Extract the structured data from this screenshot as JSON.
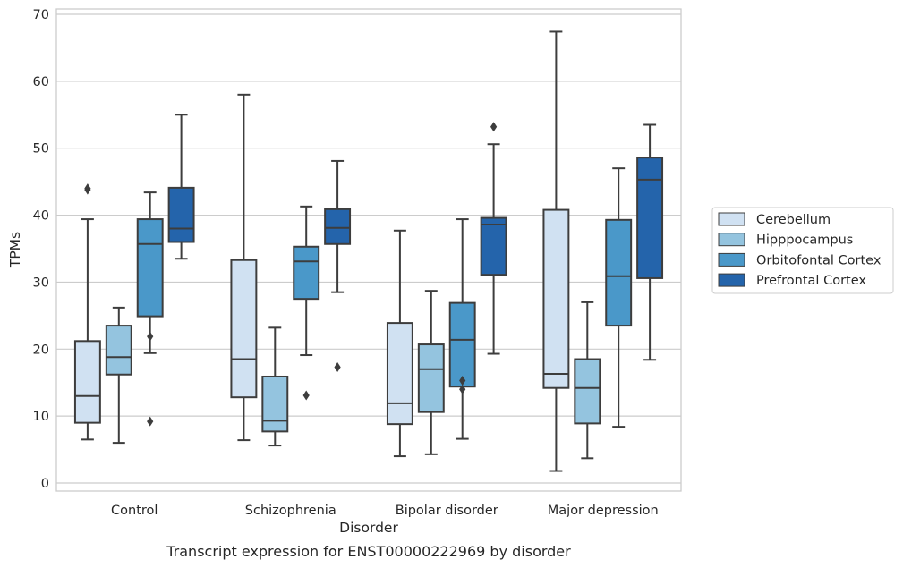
{
  "caption": "Transcript expression for ENST00000222969 by disorder",
  "chart_data": {
    "type": "box",
    "title": "",
    "xlabel": "Disorder",
    "ylabel": "TPMs",
    "ylim": [
      -1.2,
      70.8
    ],
    "yticks": [
      0,
      10,
      20,
      30,
      40,
      50,
      60,
      70
    ],
    "grid": "horizontal",
    "legend_position": "right",
    "categories": [
      "Control",
      "Schizophrenia",
      "Bipolar disorder",
      "Major depression"
    ],
    "series": [
      {
        "name": "Cerebellum",
        "color": "#d0e1f2",
        "boxes": [
          {
            "whislo": 6.5,
            "q1": 9.0,
            "med": 13.0,
            "q3": 21.2,
            "whishi": 39.4,
            "fliers": [
              43.8,
              44.0
            ]
          },
          {
            "whislo": 6.4,
            "q1": 12.8,
            "med": 18.5,
            "q3": 33.3,
            "whishi": 58.0,
            "fliers": []
          },
          {
            "whislo": 4.0,
            "q1": 8.8,
            "med": 11.9,
            "q3": 23.9,
            "whishi": 37.7,
            "fliers": []
          },
          {
            "whislo": 1.8,
            "q1": 14.2,
            "med": 16.3,
            "q3": 40.8,
            "whishi": 67.4,
            "fliers": []
          }
        ]
      },
      {
        "name": "Hipppocampus",
        "color": "#94c4df",
        "boxes": [
          {
            "whislo": 6.0,
            "q1": 16.2,
            "med": 18.8,
            "q3": 23.5,
            "whishi": 26.2,
            "fliers": []
          },
          {
            "whislo": 5.6,
            "q1": 7.7,
            "med": 9.3,
            "q3": 15.9,
            "whishi": 23.2,
            "fliers": []
          },
          {
            "whislo": 4.3,
            "q1": 10.6,
            "med": 17.0,
            "q3": 20.7,
            "whishi": 28.7,
            "fliers": []
          },
          {
            "whislo": 3.7,
            "q1": 8.9,
            "med": 14.2,
            "q3": 18.5,
            "whishi": 27.0,
            "fliers": []
          }
        ]
      },
      {
        "name": "Orbitofontal Cortex",
        "color": "#4a98c9",
        "boxes": [
          {
            "whislo": 19.4,
            "q1": 24.9,
            "med": 35.7,
            "q3": 39.4,
            "whishi": 43.4,
            "fliers": [
              21.9,
              9.2
            ]
          },
          {
            "whislo": 19.1,
            "q1": 27.5,
            "med": 33.1,
            "q3": 35.3,
            "whishi": 41.3,
            "fliers": [
              13.1
            ]
          },
          {
            "whislo": 6.6,
            "q1": 14.4,
            "med": 21.4,
            "q3": 26.9,
            "whishi": 39.4,
            "fliers": [
              15.3,
              14.0
            ]
          },
          {
            "whislo": 8.4,
            "q1": 23.5,
            "med": 30.9,
            "q3": 39.3,
            "whishi": 47.0,
            "fliers": []
          }
        ]
      },
      {
        "name": "Prefrontal Cortex",
        "color": "#2464ab",
        "boxes": [
          {
            "whislo": 33.5,
            "q1": 36.0,
            "med": 38.0,
            "q3": 44.1,
            "whishi": 55.0,
            "fliers": []
          },
          {
            "whislo": 28.5,
            "q1": 35.7,
            "med": 38.1,
            "q3": 40.9,
            "whishi": 48.1,
            "fliers": [
              17.3
            ]
          },
          {
            "whislo": 19.3,
            "q1": 31.1,
            "med": 38.6,
            "q3": 39.6,
            "whishi": 50.6,
            "fliers": [
              53.2
            ]
          },
          {
            "whislo": 18.4,
            "q1": 30.6,
            "med": 45.3,
            "q3": 48.6,
            "whishi": 53.5,
            "fliers": []
          }
        ]
      }
    ]
  }
}
